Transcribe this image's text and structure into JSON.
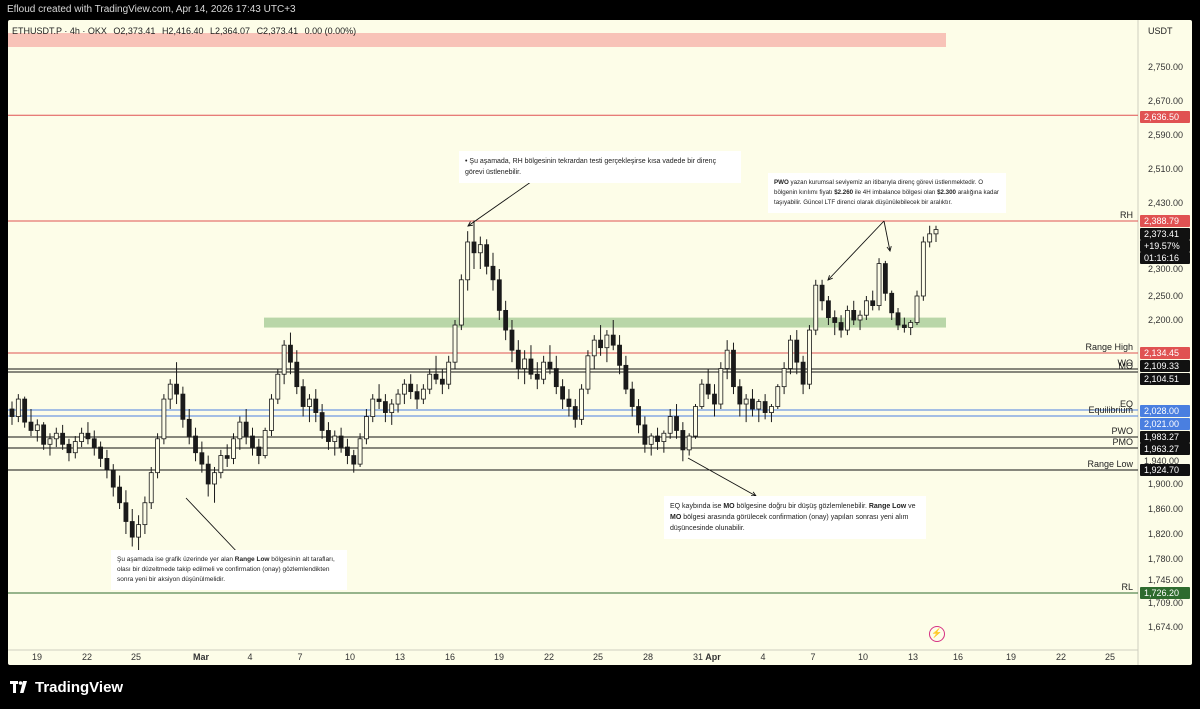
{
  "header": {
    "created_text": "Efloud created with TradingView.com, Apr 14, 2026 17:43 UTC+3"
  },
  "symbol": {
    "name": "ETHUSDT.P · 4h · OKX",
    "open": "O2,373.41",
    "high": "H2,416.40",
    "low": "L2,364.07",
    "close": "C2,373.41",
    "change": "0.00 (0.00%)"
  },
  "currency": "USDT",
  "colors": {
    "background": "#fdfde8",
    "candle": "#1a1a1a",
    "red_line": "#e05252",
    "blue_line": "#4a7fe0",
    "black_line": "#111111",
    "green_zone": "#b9d6a8",
    "pink_zone": "#f8c3b8",
    "rl_badge": "#2e6b2e",
    "price_badge_black": "#111111"
  },
  "chart_data": {
    "type": "candlestick",
    "y_ticks": [
      "2,750.00",
      "2,670.00",
      "2,590.00",
      "2,510.00",
      "2,430.00",
      "2,300.00",
      "2,250.00",
      "2,200.00",
      "1,900.00",
      "1,860.00",
      "1,820.00",
      "1,780.00",
      "1,745.00",
      "1,709.00",
      "1,674.00"
    ],
    "x_ticks": [
      "19",
      "22",
      "25",
      "Mar",
      "4",
      "7",
      "10",
      "13",
      "16",
      "19",
      "22",
      "25",
      "28",
      "31",
      "Apr",
      "4",
      "7",
      "10",
      "13",
      "16",
      "19",
      "22",
      "25"
    ],
    "price_badges": [
      {
        "text": "2,636.50",
        "price": 2636.5,
        "color": "#e05252"
      },
      {
        "text": "2,388.79",
        "price": 2388.79,
        "color": "#e05252"
      },
      {
        "text": "2,373.41",
        "price": 2373.41,
        "color": "#111111"
      },
      {
        "text": "+19.57%",
        "price": 2345,
        "color": "#111111"
      },
      {
        "text": "01:16:16",
        "price": 2318,
        "color": "#111111"
      },
      {
        "text": "2,134.45",
        "price": 2134.45,
        "color": "#e05252"
      },
      {
        "text": "2,109.33",
        "price": 2109.33,
        "color": "#111111"
      },
      {
        "text": "2,104.51",
        "price": 2104.51,
        "color": "#111111"
      },
      {
        "text": "2,028.00",
        "price": 2028.0,
        "color": "#4a7fe0"
      },
      {
        "text": "2,021.00",
        "price": 2021.0,
        "color": "#4a7fe0"
      },
      {
        "text": "1,983.27",
        "price": 1983.27,
        "color": "#111111"
      },
      {
        "text": "1,963.27",
        "price": 1963.27,
        "color": "#111111"
      },
      {
        "text": "1,940.00",
        "price": 1940.0,
        "color": "#fdfde8"
      },
      {
        "text": "1,924.70",
        "price": 1924.7,
        "color": "#111111"
      },
      {
        "text": "1,726.20",
        "price": 1726.2,
        "color": "#2e6b2e"
      }
    ],
    "levels": [
      {
        "label": "",
        "price": 2636.5,
        "color": "#e05252"
      },
      {
        "label": "RH",
        "price": 2388.79,
        "color": "#e05252"
      },
      {
        "label": "Range High",
        "price": 2134.45,
        "color": "#e05252"
      },
      {
        "label": "WO",
        "price": 2109.33,
        "color": "#111111"
      },
      {
        "label": "MO",
        "price": 2104.51,
        "color": "#111111"
      },
      {
        "label": "EQ",
        "price": 2028.0,
        "color": "#4a7fe0"
      },
      {
        "label": "Equilibrium",
        "price": 2021.0,
        "color": "#4a7fe0"
      },
      {
        "label": "PWO",
        "price": 1983.27,
        "color": "#111111"
      },
      {
        "label": "PMO",
        "price": 1963.27,
        "color": "#111111"
      },
      {
        "label": "Range Low",
        "price": 1924.7,
        "color": "#111111"
      },
      {
        "label": "RL",
        "price": 1726.2,
        "color": "#2e6b2e"
      }
    ],
    "zones": [
      {
        "name": "supply-zone",
        "top": 2810,
        "bottom": 2790,
        "color": "#f8c3b8"
      },
      {
        "name": "demand-zone",
        "top": 2205,
        "bottom": 2185,
        "color": "#b9d6a8"
      }
    ],
    "candles": [
      [
        2030,
        2045,
        2005,
        2020
      ],
      [
        2020,
        2060,
        2010,
        2050
      ],
      [
        2050,
        2055,
        2000,
        2010
      ],
      [
        2010,
        2030,
        1985,
        1995
      ],
      [
        1995,
        2015,
        1975,
        2005
      ],
      [
        2005,
        2010,
        1960,
        1970
      ],
      [
        1970,
        1990,
        1950,
        1980
      ],
      [
        1980,
        2000,
        1965,
        1990
      ],
      [
        1990,
        2005,
        1960,
        1970
      ],
      [
        1970,
        1980,
        1940,
        1955
      ],
      [
        1955,
        1985,
        1945,
        1975
      ],
      [
        1975,
        2000,
        1965,
        1990
      ],
      [
        1990,
        2010,
        1970,
        1980
      ],
      [
        1980,
        1995,
        1950,
        1965
      ],
      [
        1965,
        1975,
        1930,
        1945
      ],
      [
        1945,
        1960,
        1910,
        1925
      ],
      [
        1925,
        1935,
        1880,
        1895
      ],
      [
        1895,
        1915,
        1860,
        1870
      ],
      [
        1870,
        1890,
        1820,
        1840
      ],
      [
        1840,
        1860,
        1800,
        1815
      ],
      [
        1815,
        1850,
        1790,
        1835
      ],
      [
        1835,
        1880,
        1820,
        1870
      ],
      [
        1870,
        1930,
        1860,
        1920
      ],
      [
        1920,
        1990,
        1910,
        1980
      ],
      [
        1980,
        2060,
        1970,
        2050
      ],
      [
        2050,
        2090,
        2030,
        2080
      ],
      [
        2080,
        2120,
        2040,
        2060
      ],
      [
        2060,
        2075,
        2000,
        2015
      ],
      [
        2015,
        2030,
        1970,
        1985
      ],
      [
        1985,
        2000,
        1940,
        1955
      ],
      [
        1955,
        1975,
        1920,
        1935
      ],
      [
        1935,
        1950,
        1880,
        1900
      ],
      [
        1900,
        1930,
        1870,
        1920
      ],
      [
        1920,
        1960,
        1910,
        1950
      ],
      [
        1950,
        1970,
        1930,
        1945
      ],
      [
        1945,
        1990,
        1935,
        1980
      ],
      [
        1980,
        2020,
        1960,
        2010
      ],
      [
        2010,
        2030,
        1970,
        1985
      ],
      [
        1985,
        2000,
        1950,
        1965
      ],
      [
        1965,
        1980,
        1935,
        1950
      ],
      [
        1950,
        2000,
        1945,
        1995
      ],
      [
        1995,
        2060,
        1985,
        2050
      ],
      [
        2050,
        2110,
        2040,
        2100
      ],
      [
        2100,
        2160,
        2080,
        2150
      ],
      [
        2150,
        2175,
        2100,
        2120
      ],
      [
        2120,
        2140,
        2060,
        2075
      ],
      [
        2075,
        2090,
        2020,
        2035
      ],
      [
        2035,
        2060,
        2010,
        2050
      ],
      [
        2050,
        2070,
        2010,
        2025
      ],
      [
        2025,
        2040,
        1980,
        1995
      ],
      [
        1995,
        2010,
        1960,
        1975
      ],
      [
        1975,
        1995,
        1950,
        1985
      ],
      [
        1985,
        2000,
        1955,
        1965
      ],
      [
        1965,
        1980,
        1935,
        1950
      ],
      [
        1950,
        1960,
        1920,
        1935
      ],
      [
        1935,
        1990,
        1930,
        1980
      ],
      [
        1980,
        2030,
        1970,
        2020
      ],
      [
        2020,
        2060,
        2010,
        2050
      ],
      [
        2050,
        2080,
        2030,
        2045
      ],
      [
        2045,
        2060,
        2010,
        2025
      ],
      [
        2025,
        2050,
        2005,
        2040
      ],
      [
        2040,
        2070,
        2025,
        2060
      ],
      [
        2060,
        2090,
        2040,
        2080
      ],
      [
        2080,
        2100,
        2050,
        2065
      ],
      [
        2065,
        2080,
        2030,
        2050
      ],
      [
        2050,
        2080,
        2040,
        2070
      ],
      [
        2070,
        2110,
        2060,
        2100
      ],
      [
        2100,
        2130,
        2080,
        2090
      ],
      [
        2090,
        2110,
        2060,
        2080
      ],
      [
        2080,
        2130,
        2070,
        2120
      ],
      [
        2120,
        2200,
        2110,
        2190
      ],
      [
        2190,
        2290,
        2180,
        2280
      ],
      [
        2280,
        2370,
        2260,
        2350
      ],
      [
        2350,
        2390,
        2300,
        2330
      ],
      [
        2330,
        2360,
        2300,
        2345
      ],
      [
        2345,
        2355,
        2290,
        2305
      ],
      [
        2305,
        2330,
        2260,
        2280
      ],
      [
        2280,
        2300,
        2200,
        2220
      ],
      [
        2220,
        2240,
        2160,
        2180
      ],
      [
        2180,
        2200,
        2120,
        2140
      ],
      [
        2140,
        2160,
        2090,
        2110
      ],
      [
        2110,
        2140,
        2080,
        2125
      ],
      [
        2125,
        2150,
        2090,
        2100
      ],
      [
        2100,
        2120,
        2070,
        2090
      ],
      [
        2090,
        2130,
        2080,
        2120
      ],
      [
        2120,
        2150,
        2100,
        2110
      ],
      [
        2110,
        2130,
        2060,
        2075
      ],
      [
        2075,
        2090,
        2030,
        2050
      ],
      [
        2050,
        2070,
        2020,
        2035
      ],
      [
        2035,
        2050,
        2000,
        2015
      ],
      [
        2015,
        2080,
        2005,
        2070
      ],
      [
        2070,
        2140,
        2060,
        2130
      ],
      [
        2130,
        2170,
        2110,
        2160
      ],
      [
        2160,
        2190,
        2130,
        2145
      ],
      [
        2145,
        2180,
        2120,
        2170
      ],
      [
        2170,
        2200,
        2140,
        2150
      ],
      [
        2150,
        2170,
        2100,
        2115
      ],
      [
        2115,
        2130,
        2060,
        2070
      ],
      [
        2070,
        2085,
        2020,
        2035
      ],
      [
        2035,
        2050,
        1990,
        2005
      ],
      [
        2005,
        2020,
        1955,
        1970
      ],
      [
        1970,
        1990,
        1950,
        1985
      ],
      [
        1985,
        2000,
        1960,
        1975
      ],
      [
        1975,
        1995,
        1955,
        1990
      ],
      [
        1990,
        2030,
        1980,
        2020
      ],
      [
        2020,
        2040,
        1980,
        1995
      ],
      [
        1995,
        2010,
        1940,
        1960
      ],
      [
        1960,
        1990,
        1950,
        1985
      ],
      [
        1985,
        2040,
        1980,
        2035
      ],
      [
        2035,
        2090,
        2030,
        2080
      ],
      [
        2080,
        2110,
        2050,
        2060
      ],
      [
        2060,
        2080,
        2020,
        2040
      ],
      [
        2040,
        2120,
        2030,
        2110
      ],
      [
        2110,
        2160,
        2090,
        2140
      ],
      [
        2140,
        2155,
        2060,
        2075
      ],
      [
        2075,
        2090,
        2020,
        2040
      ],
      [
        2040,
        2060,
        2010,
        2050
      ],
      [
        2050,
        2070,
        2020,
        2030
      ],
      [
        2030,
        2050,
        2010,
        2045
      ],
      [
        2045,
        2060,
        2015,
        2025
      ],
      [
        2025,
        2040,
        2010,
        2035
      ],
      [
        2035,
        2080,
        2030,
        2075
      ],
      [
        2075,
        2120,
        2060,
        2110
      ],
      [
        2110,
        2170,
        2100,
        2160
      ],
      [
        2160,
        2180,
        2100,
        2120
      ],
      [
        2120,
        2130,
        2060,
        2080
      ],
      [
        2080,
        2190,
        2070,
        2180
      ],
      [
        2180,
        2280,
        2170,
        2270
      ],
      [
        2270,
        2280,
        2220,
        2240
      ],
      [
        2240,
        2250,
        2190,
        2205
      ],
      [
        2205,
        2220,
        2170,
        2195
      ],
      [
        2195,
        2210,
        2165,
        2180
      ],
      [
        2180,
        2230,
        2170,
        2220
      ],
      [
        2220,
        2240,
        2190,
        2200
      ],
      [
        2200,
        2220,
        2180,
        2210
      ],
      [
        2210,
        2250,
        2200,
        2240
      ],
      [
        2240,
        2260,
        2220,
        2230
      ],
      [
        2230,
        2320,
        2220,
        2310
      ],
      [
        2310,
        2315,
        2240,
        2255
      ],
      [
        2255,
        2260,
        2200,
        2215
      ],
      [
        2215,
        2225,
        2180,
        2190
      ],
      [
        2190,
        2205,
        2175,
        2185
      ],
      [
        2185,
        2200,
        2170,
        2195
      ],
      [
        2195,
        2260,
        2190,
        2250
      ],
      [
        2250,
        2360,
        2240,
        2350
      ],
      [
        2350,
        2380,
        2340,
        2365
      ],
      [
        2365,
        2380,
        2350,
        2373
      ]
    ]
  },
  "annotations": {
    "rh_note": {
      "lead": "• Şu aşamada, RH bölgesinin tekrardan testi gerçekleşirse kısa vadede bir direnç görevi üstlenebilir."
    },
    "pwo_note": {
      "b1": "PWO",
      "t1": " yazan kurumsal seviyemiz an itibarıyla direnç görevi üstlenmektedir. O bölgenin kırılımı fiyatı ",
      "b2": "$2.260",
      "t2": " ile 4H imbalance bölgesi olan ",
      "b3": "$2.300",
      "t3": " aralığına kadar taşıyabilir. Güncel LTF direnci olarak düşünülebilecek bir aralıktır."
    },
    "eq_note": {
      "t1": "EQ kaybında ise ",
      "b1": "MO",
      "t2": " bölgesine doğru bir düşüş gözlemlenebilir. ",
      "b2": "Range Low",
      "t3": " ve ",
      "b3": "MO",
      "t4": " bölgesi arasında görülecek confirmation (onay) yapıları sonrası yeni alım düşüncesinde olunabilir."
    },
    "rl_note": {
      "t1": "Şu aşamada ise grafik üzerinde yer alan ",
      "b1": "Range Low",
      "t2": " bölgesinin alt tarafları, olası bir düzeltmede takip edilmeli ve confirmation (onay) gözlemlendikten sonra yeni bir aksiyon düşünülmelidir."
    }
  },
  "footer": {
    "brand": "TradingView"
  }
}
